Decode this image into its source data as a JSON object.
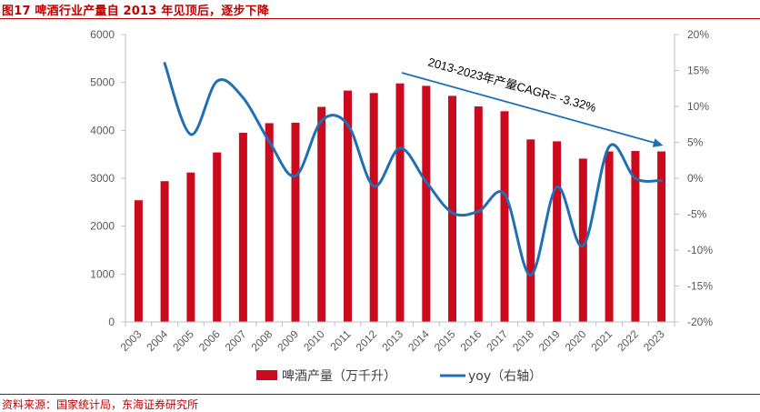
{
  "figure": {
    "title": "图17  啤酒行业产量自 2013 年见顶后，逐步下降",
    "source": "资料来源：国家统计局，东海证券研究所"
  },
  "colors": {
    "bar": "#cc0a1e",
    "line": "#1f6fb7",
    "accent": "#c00000"
  },
  "chart_data": {
    "type": "bar",
    "categories": [
      "2003",
      "2004",
      "2005",
      "2006",
      "2007",
      "2008",
      "2009",
      "2010",
      "2011",
      "2012",
      "2013",
      "2014",
      "2015",
      "2016",
      "2017",
      "2018",
      "2019",
      "2020",
      "2021",
      "2022",
      "2023"
    ],
    "series": [
      {
        "name": "啤酒产量（万千升）",
        "type": "bar",
        "axis": "left",
        "values": [
          2540,
          2940,
          3120,
          3540,
          3950,
          4150,
          4160,
          4490,
          4830,
          4780,
          4980,
          4930,
          4720,
          4500,
          4400,
          3810,
          3770,
          3410,
          3560,
          3570,
          3560
        ]
      },
      {
        "name": "yoy（右轴）",
        "type": "line",
        "axis": "right",
        "values": [
          null,
          16.0,
          6.1,
          13.5,
          11.2,
          5.1,
          0.3,
          8.0,
          7.5,
          -1.1,
          4.2,
          -0.5,
          -4.8,
          -4.6,
          -2.2,
          -13.5,
          -1.2,
          -9.4,
          4.4,
          0.0,
          -0.3
        ]
      }
    ],
    "y_left": {
      "min": 0,
      "max": 6000,
      "ticks": [
        "0",
        "1000",
        "2000",
        "3000",
        "4000",
        "5000",
        "6000"
      ]
    },
    "y_right": {
      "min": -20,
      "max": 20,
      "ticks": [
        "-20%",
        "-15%",
        "-10%",
        "-5%",
        "0%",
        "5%",
        "10%",
        "15%",
        "20%"
      ]
    },
    "annotation": {
      "text": "2013-2023年产量CAGR= -3.32%",
      "from_category": "2013",
      "to_category": "2023"
    },
    "legend_position": "bottom",
    "grid": false
  }
}
